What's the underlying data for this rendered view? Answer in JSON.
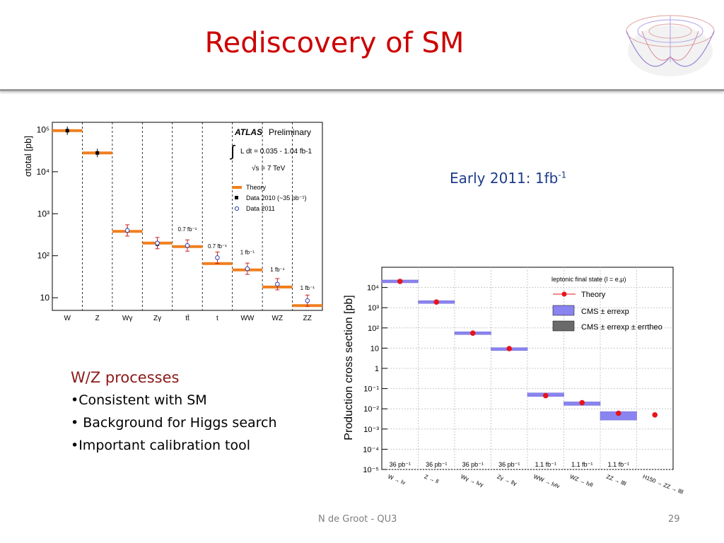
{
  "slide": {
    "title": "Rediscovery of SM",
    "early_label": "Early 2011: 1fb",
    "early_sup": "-1",
    "bullets_heading": "W/Z processes",
    "bullets": [
      "•Consistent with SM",
      "• Background for Higgs search",
      "•Important calibration tool"
    ],
    "footer_center": "N de Groot - QU3",
    "footer_page": "29"
  },
  "colors": {
    "title": "#cc0000",
    "theory_orange": "#f07f1f",
    "cms_band": "#8a84f0",
    "theory_red": "#e8141c"
  },
  "chart_data": [
    {
      "type": "scatter",
      "title": "ATLAS Preliminary",
      "annotation": "L dt = 0.035 - 1.04 fb-1",
      "energy": "√s = 7 TeV",
      "ylabel": "σtotal [pb]",
      "yscale": "log",
      "ylim": [
        5,
        150000
      ],
      "ytick_labels": [
        "10",
        "10²",
        "10³",
        "10⁴",
        "10⁵"
      ],
      "ytick_values": [
        10,
        100,
        1000,
        10000,
        100000
      ],
      "categories": [
        "W",
        "Z",
        "Wγ",
        "Zγ",
        "tt̄",
        "t",
        "WW",
        "WZ",
        "ZZ"
      ],
      "lumi_labels": [
        "",
        "",
        "",
        "",
        "0.7 fb⁻¹",
        "0.7 fb⁻¹",
        "1 fb⁻¹",
        "1 fb⁻¹",
        "1 fb⁻¹"
      ],
      "legend": [
        "Theory",
        "Data 2010  (~35 pb⁻¹)",
        "Data 2011"
      ],
      "series": [
        {
          "name": "Theory",
          "values": [
            95000,
            28000,
            380,
            200,
            165,
            65,
            46,
            18,
            6.5
          ]
        },
        {
          "name": "Data 2010  (~35 pb⁻¹)",
          "values": [
            95000,
            28000,
            400,
            190,
            null,
            null,
            null,
            null,
            null
          ]
        },
        {
          "name": "Data 2011",
          "values": [
            null,
            null,
            400,
            200,
            175,
            90,
            49,
            21,
            8.5
          ]
        }
      ]
    },
    {
      "type": "scatter",
      "title": "leptonic final state (l = e,μ)",
      "ylabel": "Production cross section [pb]",
      "yscale": "log",
      "ylim": [
        1e-05,
        100000
      ],
      "ytick_labels": [
        "10⁻⁵",
        "10⁻⁴",
        "10⁻³",
        "10⁻²",
        "10⁻¹",
        "1",
        "10",
        "10²",
        "10³",
        "10⁴"
      ],
      "ytick_values": [
        1e-05,
        0.0001,
        0.001,
        0.01,
        0.1,
        1,
        10,
        100,
        1000,
        10000
      ],
      "categories": [
        "W → lν",
        "Z → ll",
        "Wγ → lνγ",
        "Zγ → llγ",
        "WW → lνlν",
        "WZ → lνll",
        "ZZ → llll",
        "H150 → ZZ → llll"
      ],
      "lumi_labels": [
        "36 pb⁻¹",
        "36 pb⁻¹",
        "36 pb⁻¹",
        "36 pb⁻¹",
        "1.1 fb⁻¹",
        "1.1 fb⁻¹",
        "1.1 fb⁻¹",
        ""
      ],
      "legend": [
        "Theory",
        "CMS ± errexp",
        "CMS ± errexp ± errtheo"
      ],
      "series": [
        {
          "name": "Theory",
          "values": [
            20000,
            1900,
            55,
            9.5,
            0.045,
            0.02,
            0.006,
            0.005
          ]
        },
        {
          "name": "CMS ± errexp",
          "values": [
            20000,
            1900,
            55,
            9,
            0.05,
            0.018,
            0.0045,
            null
          ]
        }
      ]
    }
  ]
}
